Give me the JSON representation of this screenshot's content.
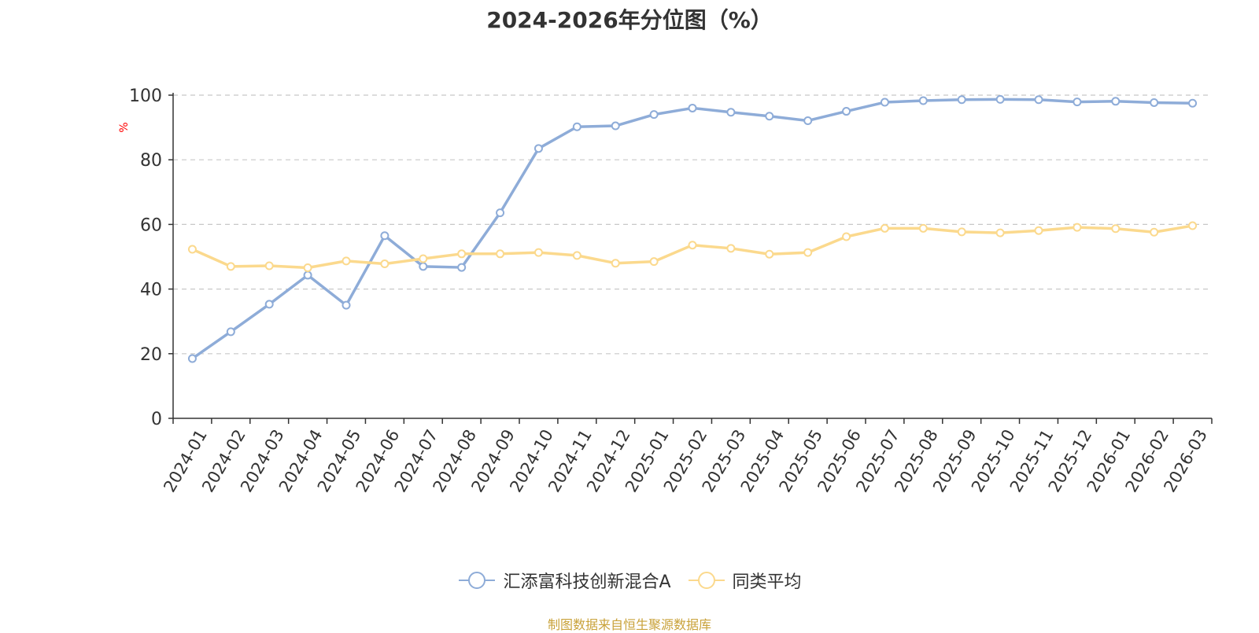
{
  "chart_data": {
    "type": "line",
    "title": "2024-2026年分位图（%）",
    "ylabel": "%",
    "xlabel": "",
    "ylim": [
      0,
      100
    ],
    "yticks": [
      "0",
      "20",
      "40",
      "60",
      "80",
      "100"
    ],
    "grid": true,
    "legend_position": "bottom",
    "categories": [
      "2024-01",
      "2024-02",
      "2024-03",
      "2024-04",
      "2024-05",
      "2024-06",
      "2024-07",
      "2024-08",
      "2024-09",
      "2024-10",
      "2024-11",
      "2024-12",
      "2025-01",
      "2025-02",
      "2025-03",
      "2025-04",
      "2025-05",
      "2025-06",
      "2025-07",
      "2025-08",
      "2025-09",
      "2025-10",
      "2025-11",
      "2025-12",
      "2026-01",
      "2026-02",
      "2026-03"
    ],
    "series": [
      {
        "name": "汇添富科技创新混合A",
        "color": "#8eacd8",
        "values": [
          18.5,
          26.8,
          35.3,
          44.3,
          35.0,
          56.5,
          47.0,
          46.7,
          63.6,
          83.5,
          90.2,
          90.5,
          94.0,
          96.0,
          94.7,
          93.5,
          92.1,
          95.0,
          97.8,
          98.3,
          98.6,
          98.7,
          98.6,
          97.9,
          98.1,
          97.7,
          97.5
        ]
      },
      {
        "name": "同类平均",
        "color": "#fbd98d",
        "values": [
          52.3,
          47.0,
          47.2,
          46.6,
          48.7,
          47.8,
          49.4,
          50.9,
          50.9,
          51.3,
          50.4,
          48.0,
          48.5,
          53.6,
          52.6,
          50.8,
          51.3,
          56.2,
          58.8,
          58.8,
          57.7,
          57.4,
          58.1,
          59.1,
          58.7,
          57.6,
          59.6
        ]
      }
    ]
  },
  "source_note": "制图数据来自恒生聚源数据库"
}
